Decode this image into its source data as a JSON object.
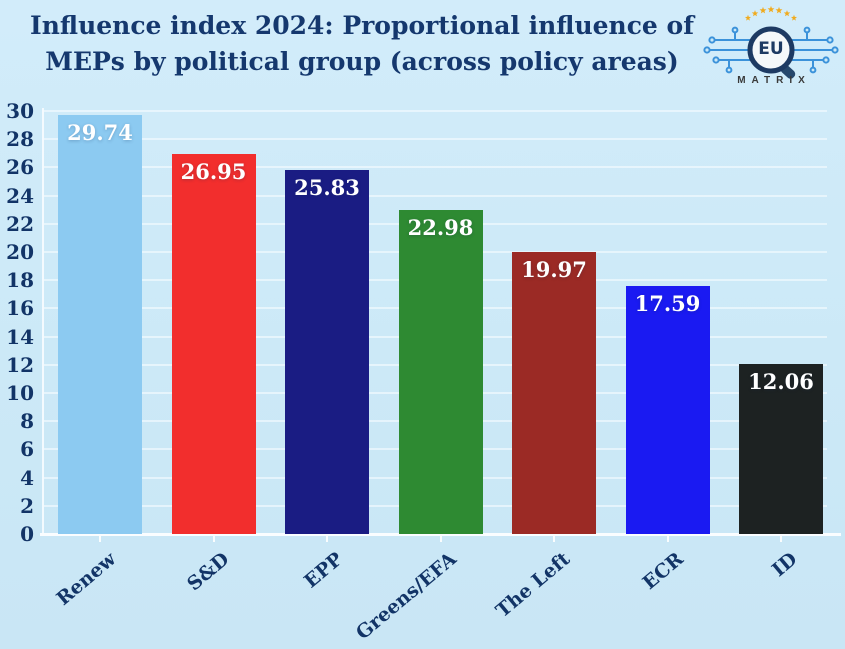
{
  "header": {
    "title_lines": [
      "Influence index 2024: Proportional influence of",
      "MEPs by political group (across policy areas)"
    ]
  },
  "logo": {
    "circle_text": "EU",
    "brand_text": "MATRIX",
    "accent_blue": "#3b92da",
    "navy": "#1d3a63",
    "star_color": "#f0ab1f"
  },
  "chart_data": {
    "type": "bar",
    "title": "Influence index 2024: Proportional influence of MEPs by political group (across policy areas)",
    "categories": [
      "Renew",
      "S&D",
      "EPP",
      "Greens/EFA",
      "The Left",
      "ECR",
      "ID"
    ],
    "values": [
      29.74,
      26.95,
      25.83,
      22.98,
      19.97,
      17.59,
      12.06
    ],
    "data_labels": [
      "29.74",
      "26.95",
      "25.83",
      "22.98",
      "19.97",
      "17.59",
      "12.06"
    ],
    "bar_colors": [
      "#8ccaf1",
      "#f22e2d",
      "#1a1c83",
      "#2e8a32",
      "#9b2a25",
      "#1a1af2",
      "#1d2222"
    ],
    "xlabel": "",
    "ylabel": "",
    "ylim": [
      0,
      30
    ],
    "ytick_step": 2,
    "grid": true,
    "legend": false,
    "background_color": "#cce9f7",
    "text_color": "#123467",
    "value_label_color": "#ffffff"
  }
}
